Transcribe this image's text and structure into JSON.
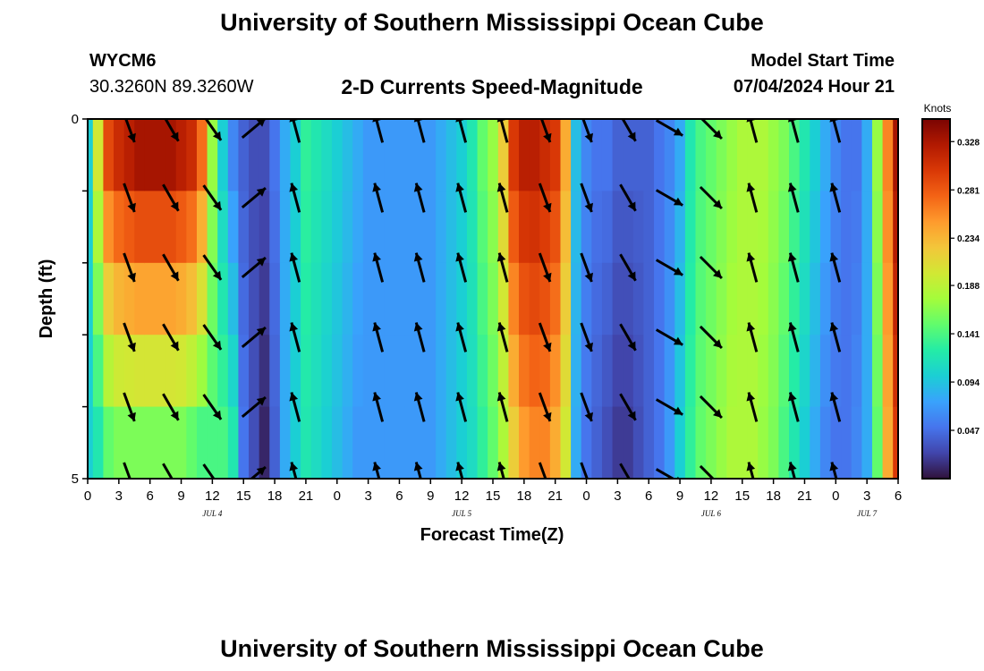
{
  "header": {
    "title": "University of Southern Mississippi Ocean Cube",
    "station_id": "WYCM6",
    "coordinates": "30.3260N  89.3260W",
    "chart_title": "2-D Currents Speed-Magnitude",
    "model_start_label": "Model Start Time",
    "model_start_value": "07/04/2024 Hour 21"
  },
  "footer": {
    "title": "University of Southern Mississippi Ocean Cube"
  },
  "colors": {
    "arrow": "#000000",
    "colormap": [
      "#30123b",
      "#4145ab",
      "#4675ed",
      "#39a2fc",
      "#1bcfd4",
      "#24eca6",
      "#61fc6c",
      "#a4fc3b",
      "#d1e834",
      "#f3c63a",
      "#fe9b2d",
      "#f36315",
      "#d93806",
      "#b11901",
      "#7a0402"
    ]
  },
  "chart_data": {
    "type": "heatmap",
    "xlabel": "Forecast Time(Z)",
    "ylabel": "Depth (ft)",
    "y_tick_labels": [
      "0",
      "5"
    ],
    "ylim": [
      0,
      5
    ],
    "x_tick_labels": [
      "0",
      "3",
      "6",
      "9",
      "12",
      "15",
      "18",
      "21",
      "0",
      "3",
      "6",
      "9",
      "12",
      "15",
      "18",
      "21",
      "0",
      "3",
      "6",
      "9",
      "12",
      "15",
      "18",
      "21",
      "0",
      "3",
      "6"
    ],
    "date_labels": [
      {
        "text": "JUL 4",
        "hour": 12
      },
      {
        "text": "JUL 5",
        "hour": 36
      },
      {
        "text": "JUL 6",
        "hour": 60
      },
      {
        "text": "JUL 7",
        "hour": 75
      }
    ],
    "x_range_hours": [
      0,
      78
    ],
    "colorbar": {
      "unit": "Knots",
      "range": [
        0.0,
        0.35
      ],
      "tick_labels": [
        "0.328",
        "0.281",
        "0.234",
        "0.188",
        "0.141",
        "0.094",
        "0.047"
      ],
      "tick_values": [
        0.328,
        0.281,
        0.234,
        0.188,
        0.141,
        0.094,
        0.047
      ]
    },
    "depth_levels_ft": [
      0,
      1,
      2,
      3,
      4,
      5
    ],
    "speed_knots_by_hour": {
      "hours": [
        0,
        1,
        2,
        3,
        4,
        5,
        6,
        7,
        8,
        9,
        10,
        11,
        12,
        13,
        14,
        15,
        16,
        17,
        18,
        19,
        20,
        21,
        22,
        23,
        24,
        25,
        26,
        27,
        28,
        29,
        30,
        31,
        32,
        33,
        34,
        35,
        36,
        37,
        38,
        39,
        40,
        41,
        42,
        43,
        44,
        45,
        46,
        47,
        48,
        49,
        50,
        51,
        52,
        53,
        54,
        55,
        56,
        57,
        58,
        59,
        60,
        61,
        62,
        63,
        64,
        65,
        66,
        67,
        68,
        69,
        70,
        71,
        72,
        73,
        74,
        75,
        76,
        77,
        78
      ],
      "surface": [
        0.1,
        0.2,
        0.29,
        0.31,
        0.32,
        0.33,
        0.33,
        0.33,
        0.33,
        0.32,
        0.31,
        0.27,
        0.17,
        0.1,
        0.06,
        0.04,
        0.03,
        0.03,
        0.05,
        0.08,
        0.1,
        0.13,
        0.12,
        0.11,
        0.1,
        0.09,
        0.08,
        0.07,
        0.07,
        0.07,
        0.07,
        0.07,
        0.07,
        0.07,
        0.08,
        0.09,
        0.1,
        0.12,
        0.15,
        0.17,
        0.22,
        0.3,
        0.32,
        0.32,
        0.31,
        0.3,
        0.24,
        0.09,
        0.06,
        0.05,
        0.05,
        0.04,
        0.04,
        0.04,
        0.04,
        0.05,
        0.06,
        0.08,
        0.12,
        0.14,
        0.15,
        0.16,
        0.17,
        0.18,
        0.18,
        0.18,
        0.17,
        0.16,
        0.14,
        0.12,
        0.1,
        0.08,
        0.06,
        0.05,
        0.05,
        0.08,
        0.17,
        0.26,
        0.33
      ],
      "bottom": [
        0.1,
        0.12,
        0.15,
        0.16,
        0.16,
        0.16,
        0.16,
        0.16,
        0.16,
        0.16,
        0.15,
        0.14,
        0.14,
        0.14,
        0.12,
        0.05,
        0.03,
        0.01,
        0.04,
        0.08,
        0.1,
        0.12,
        0.11,
        0.1,
        0.09,
        0.08,
        0.07,
        0.07,
        0.07,
        0.07,
        0.07,
        0.07,
        0.07,
        0.07,
        0.08,
        0.09,
        0.1,
        0.11,
        0.13,
        0.15,
        0.18,
        0.22,
        0.25,
        0.26,
        0.26,
        0.24,
        0.2,
        0.08,
        0.05,
        0.04,
        0.03,
        0.02,
        0.02,
        0.03,
        0.04,
        0.05,
        0.07,
        0.1,
        0.13,
        0.15,
        0.16,
        0.17,
        0.18,
        0.18,
        0.18,
        0.17,
        0.16,
        0.14,
        0.12,
        0.1,
        0.08,
        0.06,
        0.05,
        0.05,
        0.06,
        0.08,
        0.15,
        0.24,
        0.3
      ]
    },
    "vector_hours": [
      4,
      8,
      12,
      16,
      20,
      28,
      32,
      36,
      40,
      44,
      48,
      52,
      56,
      60,
      64,
      68,
      72
    ],
    "vector_direction_deg_to": [
      160,
      150,
      145,
      50,
      345,
      345,
      345,
      345,
      345,
      160,
      160,
      150,
      120,
      135,
      345,
      345,
      345
    ]
  }
}
